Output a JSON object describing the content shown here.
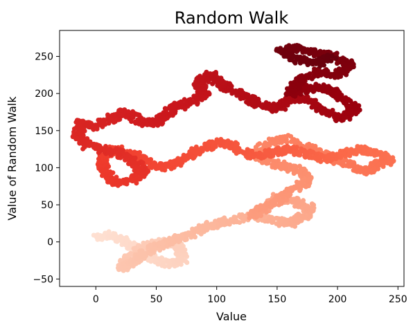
{
  "chart_data": {
    "type": "scatter",
    "title": "Random Walk",
    "xlabel": "Value",
    "ylabel": "Value of Random Walk",
    "xlim": [
      -30,
      255
    ],
    "ylim": [
      -60,
      285
    ],
    "xticks": [
      0,
      50,
      100,
      150,
      200,
      250
    ],
    "xtick_labels": [
      "0",
      "50",
      "100",
      "150",
      "200",
      "250"
    ],
    "yticks": [
      -50,
      0,
      50,
      100,
      150,
      200,
      250
    ],
    "yticks_labels": [
      "−50",
      "0",
      "50",
      "100",
      "150",
      "200",
      "250"
    ],
    "grid": false,
    "legend": "none",
    "colormap": "Reds",
    "colormap_stops": [
      "#fee0d2",
      "#fcbba1",
      "#fc9272",
      "#fb6a4a",
      "#ef3b2c",
      "#cb181d",
      "#99000d",
      "#67000d"
    ],
    "color_by": "step",
    "marker_size": 3.5,
    "path_waypoints": {
      "x": [
        0,
        12,
        22,
        35,
        45,
        60,
        72,
        68,
        55,
        40,
        30,
        22,
        28,
        45,
        62,
        78,
        90,
        100,
        115,
        130,
        145,
        160,
        172,
        178,
        165,
        150,
        140,
        130,
        138,
        150,
        158,
        168,
        175,
        172,
        160,
        148,
        138,
        130,
        140,
        155,
        170,
        185,
        200,
        215,
        225,
        235,
        244,
        232,
        218,
        205,
        190,
        175,
        160,
        145,
        130,
        118,
        105,
        95,
        80,
        70,
        58,
        45,
        35,
        25,
        15,
        8,
        5,
        10,
        18,
        28,
        40,
        30,
        18,
        5,
        -8,
        -15,
        -12,
        0,
        12,
        22,
        30,
        38,
        48,
        60,
        72,
        82,
        90,
        85,
        95,
        105,
        120,
        135,
        150,
        165,
        178,
        190,
        205,
        215,
        200,
        185,
        172,
        160,
        170,
        185,
        200,
        210,
        198,
        180,
        165,
        152,
        158,
        170,
        185,
        195
      ],
      "y": [
        5,
        10,
        2,
        -10,
        -20,
        -30,
        -25,
        -5,
        0,
        -5,
        -15,
        -35,
        -30,
        -10,
        0,
        10,
        20,
        25,
        30,
        35,
        30,
        25,
        35,
        45,
        55,
        60,
        45,
        35,
        45,
        55,
        65,
        75,
        80,
        95,
        100,
        105,
        110,
        120,
        130,
        140,
        130,
        120,
        110,
        100,
        95,
        105,
        110,
        120,
        125,
        118,
        112,
        118,
        125,
        120,
        115,
        125,
        135,
        130,
        120,
        110,
        100,
        105,
        115,
        120,
        125,
        118,
        105,
        90,
        78,
        82,
        95,
        110,
        120,
        125,
        130,
        145,
        160,
        155,
        165,
        175,
        170,
        162,
        160,
        175,
        185,
        190,
        200,
        215,
        225,
        210,
        200,
        185,
        180,
        195,
        190,
        175,
        165,
        180,
        200,
        210,
        205,
        200,
        220,
        230,
        225,
        240,
        250,
        255,
        262,
        258,
        250,
        245,
        240,
        250
      ]
    }
  }
}
